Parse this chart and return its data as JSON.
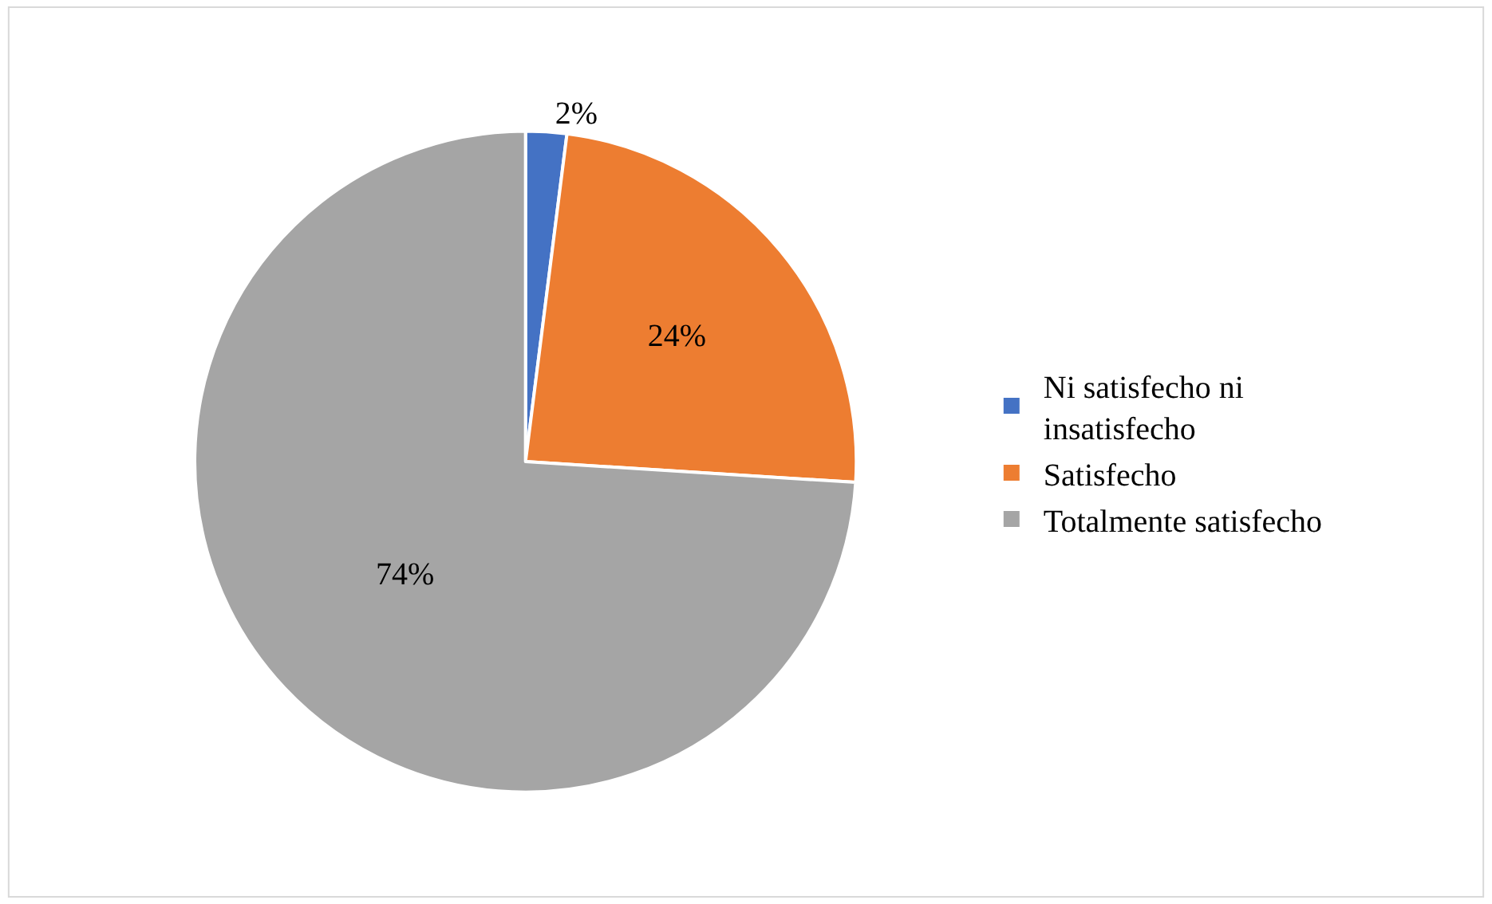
{
  "chart_data": {
    "type": "pie",
    "categories": [
      "Ni satisfecho ni insatisfecho",
      "Satisfecho",
      "Totalmente satisfecho"
    ],
    "values": [
      2,
      24,
      74
    ],
    "colors": [
      "#4472c4",
      "#ed7d31",
      "#a5a5a5"
    ],
    "value_labels": [
      "2%",
      "24%",
      "74%"
    ],
    "legend": "right"
  }
}
